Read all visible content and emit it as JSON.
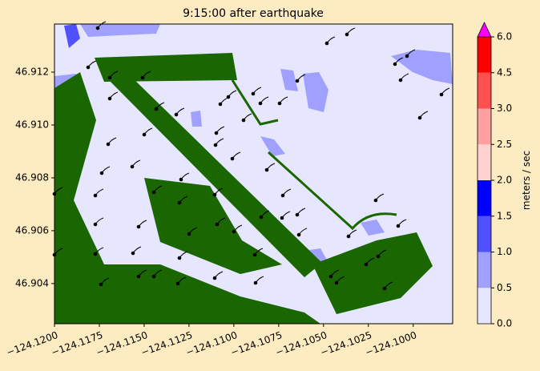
{
  "chart_data": {
    "type": "contourf",
    "title": "9:15:00 after earthquake",
    "xlim": [
      -124.12,
      -124.0978
    ],
    "ylim": [
      46.90248,
      46.91382
    ],
    "xticks": [
      {
        "value": -124.12,
        "label": "−124.1200"
      },
      {
        "value": -124.1175,
        "label": "−124.1175"
      },
      {
        "value": -124.115,
        "label": "−124.1150"
      },
      {
        "value": -124.1125,
        "label": "−124.1125"
      },
      {
        "value": -124.11,
        "label": "−124.1100"
      },
      {
        "value": -124.1075,
        "label": "−124.1075"
      },
      {
        "value": -124.105,
        "label": "−124.1050"
      },
      {
        "value": -124.1025,
        "label": "−124.1025"
      },
      {
        "value": -124.1,
        "label": "−124.1000"
      }
    ],
    "yticks": [
      46.904,
      46.906,
      46.908,
      {
        "value": 46.91,
        "label": "46.910"
      },
      46.912
    ],
    "colorbar": {
      "label": "meters / sec",
      "levels": [
        {
          "value": 0,
          "label": "0.0"
        },
        {
          "value": 0.5,
          "label": "0.5"
        },
        {
          "value": 1,
          "label": "1.0"
        },
        {
          "value": 1.5,
          "label": "1.5"
        },
        {
          "value": 2,
          "label": "2.0"
        },
        {
          "value": 2.5,
          "label": "2.5"
        },
        {
          "value": 3,
          "label": "3.0"
        },
        {
          "value": 4.5,
          "label": "4.5"
        },
        {
          "value": 6,
          "label": "6.0"
        }
      ],
      "colors": [
        "#e6e6ff",
        "#a0a0ff",
        "#5050ff",
        "#0000ff",
        "#ffd0d0",
        "#ff9f9f",
        "#ff5050",
        "#ff0000"
      ],
      "extend_color": "#ff00ff"
    },
    "land_color": "#1a6600"
  }
}
